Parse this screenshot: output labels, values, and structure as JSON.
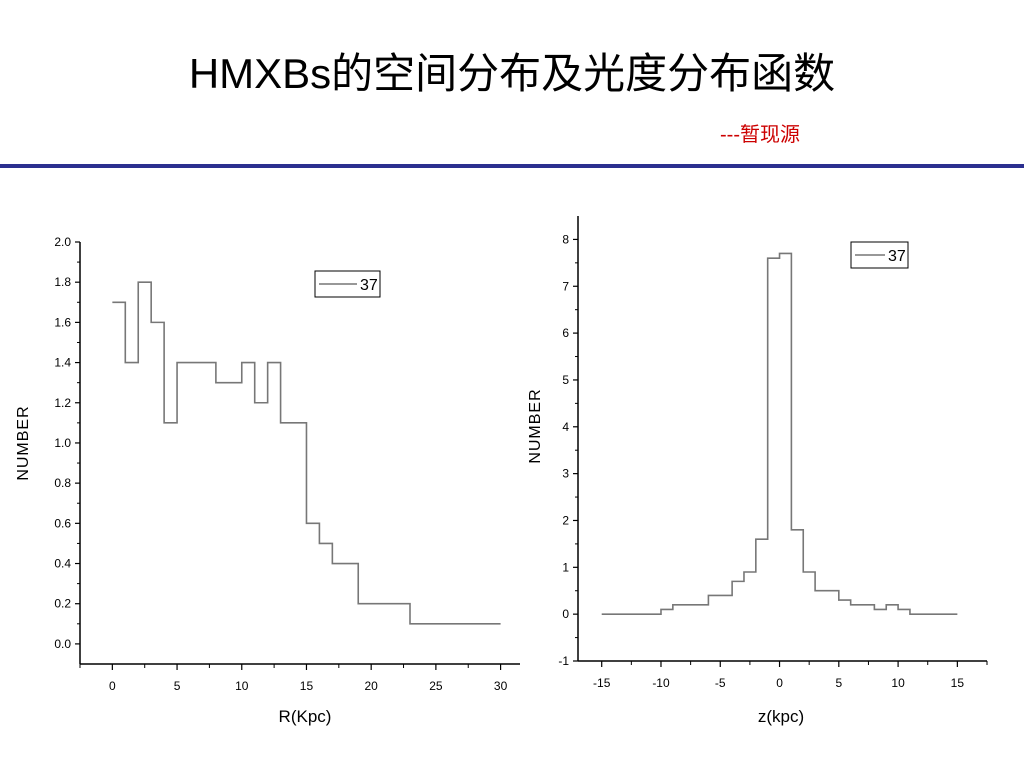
{
  "slide": {
    "title": "HMXBs的空间分布及光度分布函数",
    "subtitle": "---暂现源"
  },
  "chart_data": [
    {
      "type": "line",
      "style": "step",
      "xlabel": "R(Kpc)",
      "ylabel": "NUMBER",
      "xlim": [
        -2.5,
        31.5
      ],
      "ylim": [
        -0.1,
        2.0
      ],
      "xticks": [
        0,
        5,
        10,
        15,
        20,
        25,
        30
      ],
      "yticks": [
        0.0,
        0.2,
        0.4,
        0.6,
        0.8,
        1.0,
        1.2,
        1.4,
        1.6,
        1.8,
        2.0
      ],
      "ytick_labels": [
        "0.0",
        "0.2",
        "0.4",
        "0.6",
        "0.8",
        "1.0",
        "1.2",
        "1.4",
        "1.6",
        "1.8",
        "2.0"
      ],
      "legend": "top-right",
      "series": [
        {
          "name": "37",
          "color": "#777777",
          "x": [
            0.5,
            1.5,
            2.5,
            3.5,
            4.5,
            5.5,
            6.5,
            7.5,
            8.5,
            9.5,
            10.5,
            11.5,
            12.5,
            13.5,
            14.5,
            15.5,
            16.5,
            17.5,
            18.5,
            19.5,
            20.5,
            21.5,
            22.5,
            23.5,
            24.5,
            25.5,
            26.5,
            27.5,
            28.5,
            29.5
          ],
          "values": [
            1.7,
            1.4,
            1.8,
            1.6,
            1.1,
            1.4,
            1.4,
            1.4,
            1.3,
            1.3,
            1.4,
            1.2,
            1.4,
            1.1,
            1.1,
            0.6,
            0.5,
            0.4,
            0.4,
            0.2,
            0.2,
            0.2,
            0.2,
            0.1,
            0.1,
            0.1,
            0.1,
            0.1,
            0.1,
            0.1
          ]
        }
      ]
    },
    {
      "type": "line",
      "style": "step",
      "xlabel": "z(kpc)",
      "ylabel": "NUMBER",
      "xlim": [
        -17,
        17.5
      ],
      "ylim": [
        -1,
        8.5
      ],
      "xticks": [
        -15,
        -10,
        -5,
        0,
        5,
        10,
        15
      ],
      "yticks": [
        -1,
        0,
        1,
        2,
        3,
        4,
        5,
        6,
        7,
        8
      ],
      "ytick_labels": [
        "-1",
        "0",
        "1",
        "2",
        "3",
        "4",
        "5",
        "6",
        "7",
        "8"
      ],
      "legend": "top-right",
      "series": [
        {
          "name": "37",
          "color": "#777777",
          "x": [
            -14.5,
            -13.5,
            -12.5,
            -11.5,
            -10.5,
            -9.5,
            -8.5,
            -7.5,
            -6.5,
            -5.5,
            -4.5,
            -3.5,
            -2.5,
            -1.5,
            -0.5,
            0.5,
            1.5,
            2.5,
            3.5,
            4.5,
            5.5,
            6.5,
            7.5,
            8.5,
            9.5,
            10.5,
            11.5,
            12.5,
            13.5,
            14.5
          ],
          "values": [
            0,
            0,
            0,
            0,
            0,
            0.1,
            0.2,
            0.2,
            0.2,
            0.4,
            0.4,
            0.7,
            0.9,
            1.6,
            7.6,
            7.7,
            1.8,
            0.9,
            0.5,
            0.5,
            0.3,
            0.2,
            0.2,
            0.1,
            0.2,
            0.1,
            0,
            0,
            0,
            0
          ]
        }
      ]
    }
  ]
}
